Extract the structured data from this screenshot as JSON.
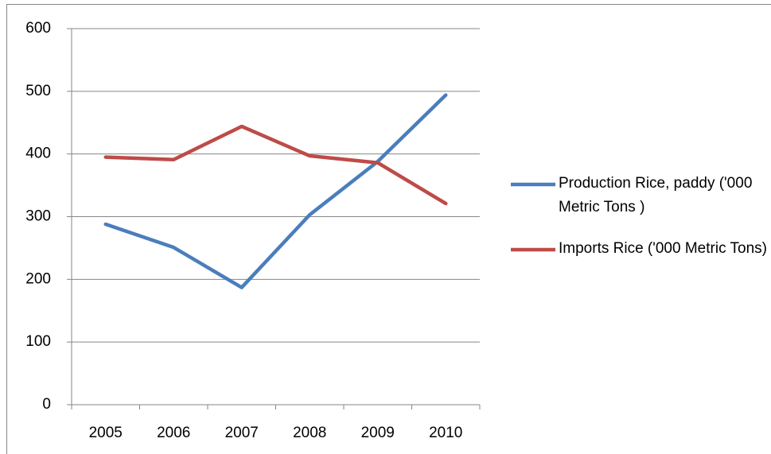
{
  "chart_data": {
    "type": "line",
    "categories": [
      "2005",
      "2006",
      "2007",
      "2008",
      "2009",
      "2010"
    ],
    "series": [
      {
        "name": "Production Rice, paddy ('000 Metric Tons )",
        "color": "#4a7ebb",
        "values": [
          288,
          251,
          187,
          303,
          388,
          494
        ]
      },
      {
        "name": "Imports Rice ('000 Metric Tons)",
        "color": "#be4b48",
        "values": [
          395,
          391,
          444,
          397,
          386,
          321
        ]
      }
    ],
    "ylim": [
      0,
      600
    ],
    "yticks": [
      0,
      100,
      200,
      300,
      400,
      500,
      600
    ],
    "grid": true,
    "legend": "right"
  }
}
